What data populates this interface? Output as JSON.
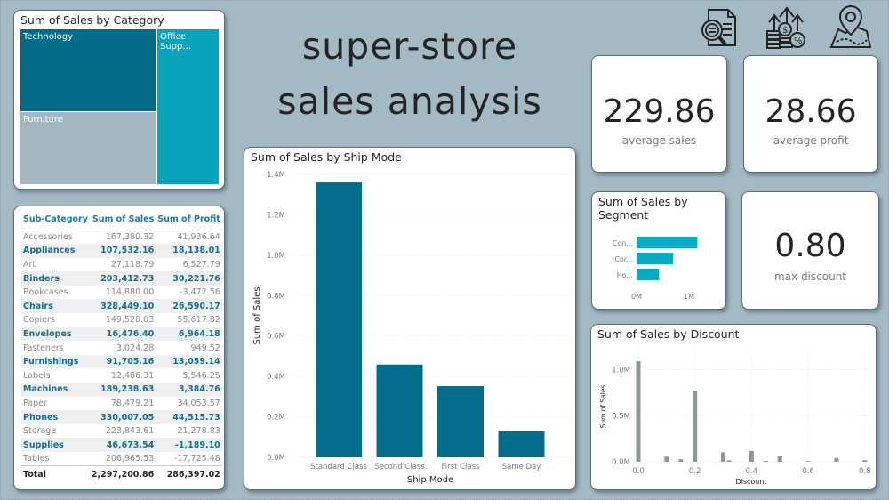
{
  "title": {
    "line1": "super-store",
    "line2": "sales analysis"
  },
  "icons": [
    "document-search-icon",
    "finance-growth-icon",
    "map-pin-icon"
  ],
  "colors": {
    "background": "#a3b9c4",
    "technology": "#036a87",
    "furniture": "#a3b7c3",
    "office_supplies": "#0aa3bd",
    "ship_bar": "#046d8c",
    "segment_bar": "#0aa9c4",
    "discount_bar": "#8a9995",
    "table_accent": "#13708f"
  },
  "treemap": {
    "title": "Sum of Sales by Category",
    "cells": [
      {
        "label": "Technology"
      },
      {
        "label": "Furniture"
      },
      {
        "label": "Office Supp..."
      }
    ]
  },
  "table": {
    "headers": [
      "Sub-Category",
      "Sum of Sales",
      "Sum of Profit"
    ],
    "rows": [
      [
        "Accessories",
        "167,380.32",
        "41,936.64"
      ],
      [
        "Appliances",
        "107,532.16",
        "18,138.01"
      ],
      [
        "Art",
        "27,118.79",
        "6,527.79"
      ],
      [
        "Binders",
        "203,412.73",
        "30,221.76"
      ],
      [
        "Bookcases",
        "114,880.00",
        "-3,472.56"
      ],
      [
        "Chairs",
        "328,449.10",
        "26,590.17"
      ],
      [
        "Copiers",
        "149,528.03",
        "55,617.82"
      ],
      [
        "Envelopes",
        "16,476.40",
        "6,964.18"
      ],
      [
        "Fasteners",
        "3,024.28",
        "949.52"
      ],
      [
        "Furnishings",
        "91,705.16",
        "13,059.14"
      ],
      [
        "Labels",
        "12,486.31",
        "5,546.25"
      ],
      [
        "Machines",
        "189,238.63",
        "3,384.76"
      ],
      [
        "Paper",
        "78,479.21",
        "34,053.57"
      ],
      [
        "Phones",
        "330,007.05",
        "44,515.73"
      ],
      [
        "Storage",
        "223,843.61",
        "21,278.83"
      ],
      [
        "Supplies",
        "46,673.54",
        "-1,189.10"
      ],
      [
        "Tables",
        "206,965.53",
        "-17,725.48"
      ]
    ],
    "total": [
      "Total",
      "2,297,200.86",
      "286,397.02"
    ]
  },
  "kpis": {
    "average_sales": {
      "value": "229.86",
      "label": "average sales"
    },
    "average_profit": {
      "value": "28.66",
      "label": "average profit"
    },
    "max_discount": {
      "value": "0.80",
      "label": "max discount"
    }
  },
  "chart_data": [
    {
      "type": "bar",
      "title": "Sum of Sales by Ship Mode",
      "xlabel": "Ship Mode",
      "ylabel": "Sum of Sales",
      "categories": [
        "Standard Class",
        "Second Class",
        "First Class",
        "Same Day"
      ],
      "values": [
        1360000,
        459000,
        352000,
        128000
      ],
      "yticks": [
        "0.0M",
        "0.2M",
        "0.4M",
        "0.6M",
        "0.8M",
        "1.0M",
        "1.2M",
        "1.4M"
      ],
      "ylim": [
        0,
        1400000
      ],
      "grid": true
    },
    {
      "type": "bar",
      "orientation": "horizontal",
      "title": "Sum of Sales by Segment",
      "categories": [
        "Con...",
        "Cor...",
        "Ho..."
      ],
      "values": [
        1160000,
        700000,
        430000
      ],
      "xticks": [
        "0M",
        "1M"
      ],
      "xlim": [
        0,
        1000000
      ]
    },
    {
      "type": "bar",
      "title": "Sum of Sales by Discount",
      "xlabel": "Discount",
      "ylabel": "Sum of Sales",
      "x": [
        0.0,
        0.1,
        0.15,
        0.2,
        0.3,
        0.32,
        0.4,
        0.45,
        0.5,
        0.6,
        0.7,
        0.8
      ],
      "values": [
        1090000,
        55000,
        27000,
        765000,
        103000,
        14000,
        117000,
        10000,
        58000,
        7000,
        40000,
        17000
      ],
      "xticks": [
        "0.0",
        "0.2",
        "0.4",
        "0.6",
        "0.8"
      ],
      "yticks": [
        "0.0M",
        "0.5M",
        "1.0M"
      ],
      "ylim": [
        0,
        1200000
      ],
      "grid": true
    }
  ]
}
